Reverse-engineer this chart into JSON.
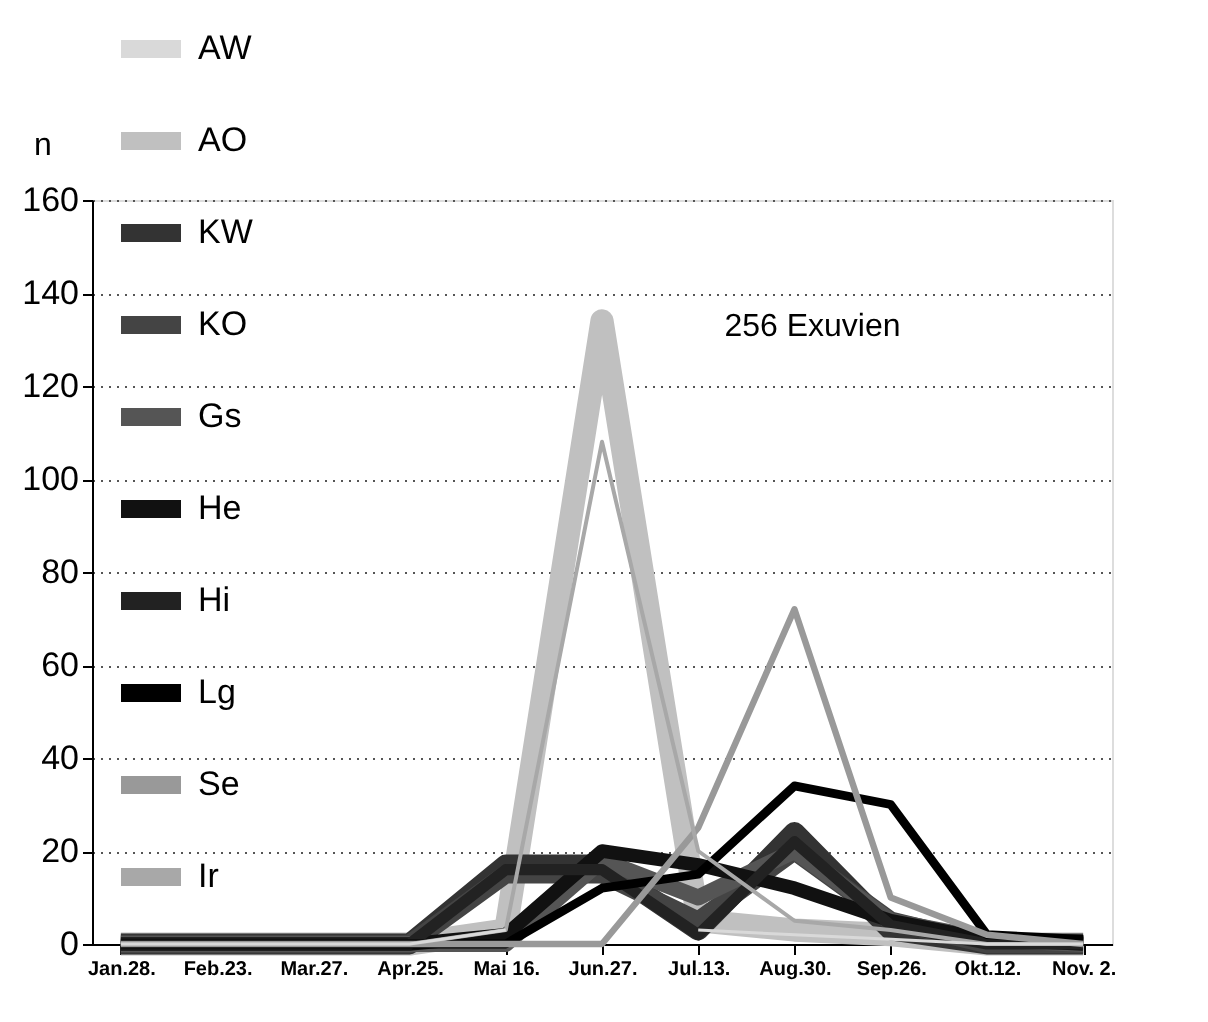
{
  "chart_data": {
    "type": "line",
    "ylabel": "n",
    "categories": [
      "Jan.28.",
      "Feb.23.",
      "Mar.27.",
      "Apr.25.",
      "Mai 16.",
      "Jun.27.",
      "Jul.13.",
      "Aug.30.",
      "Sep.26.",
      "Okt.12.",
      "Nov. 2."
    ],
    "series": [
      {
        "name": "AW",
        "color": "#d9d9d9",
        "values": [
          0,
          0,
          0,
          0,
          3,
          null,
          3,
          2,
          1,
          0,
          0
        ]
      },
      {
        "name": "AO",
        "color": "#c0c0c0",
        "values": [
          0,
          0,
          0,
          0,
          3,
          134,
          5,
          3,
          2,
          0,
          0
        ]
      },
      {
        "name": "KW",
        "color": "#333333",
        "values": [
          0,
          0,
          0,
          0,
          17,
          17,
          3,
          24,
          3,
          0,
          0
        ]
      },
      {
        "name": "KO",
        "color": "#444444",
        "values": [
          0,
          0,
          0,
          0,
          15,
          15,
          5,
          20,
          5,
          0,
          0
        ]
      },
      {
        "name": "Gs",
        "color": "#555555",
        "values": [
          0,
          0,
          0,
          0,
          0,
          18,
          10,
          20,
          5,
          1,
          0
        ]
      },
      {
        "name": "He",
        "color": "#111111",
        "values": [
          0,
          0,
          0,
          0,
          2,
          20,
          17,
          12,
          5,
          1,
          0
        ]
      },
      {
        "name": "Hi",
        "color": "#222222",
        "values": [
          0,
          0,
          0,
          0,
          16,
          16,
          2,
          22,
          4,
          0,
          0
        ]
      },
      {
        "name": "Lg",
        "color": "#000000",
        "values": [
          0,
          0,
          0,
          0,
          0,
          12,
          15,
          34,
          30,
          2,
          1
        ]
      },
      {
        "name": "Se",
        "color": "#999999",
        "values": [
          0,
          0,
          0,
          0,
          0,
          0,
          25,
          72,
          10,
          2,
          0
        ]
      },
      {
        "name": "Ir",
        "color": "#a8a8a8",
        "values": [
          0,
          0,
          0,
          0,
          3,
          108,
          20,
          5,
          3,
          0,
          0
        ]
      }
    ],
    "ylim": [
      0,
      160
    ],
    "yticks": [
      0,
      20,
      40,
      60,
      80,
      100,
      120,
      140,
      160
    ],
    "annotations": [
      "256 Exuvien"
    ],
    "grid": "y",
    "legend": "top left",
    "marker": "none",
    "line_style": "solid"
  }
}
